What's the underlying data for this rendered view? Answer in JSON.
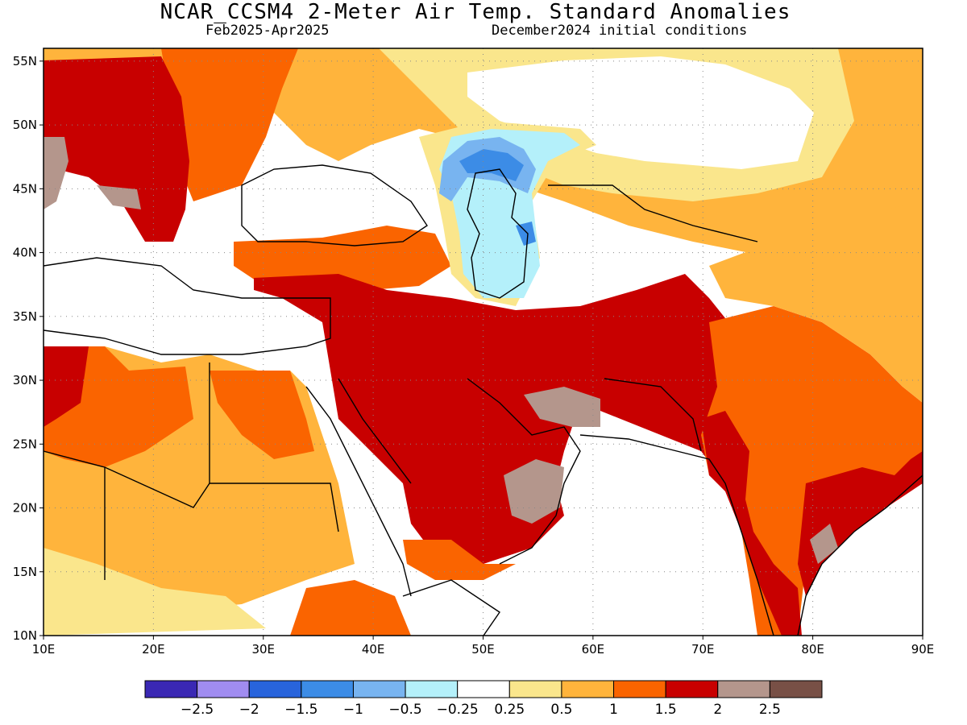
{
  "header": {
    "title": "NCAR_CCSM4 2-Meter Air Temp. Standard Anomalies",
    "period": "Feb2025-Apr2025",
    "init": "December2024 initial conditions"
  },
  "map": {
    "lon_range": [
      10,
      90
    ],
    "lat_range": [
      10,
      56
    ],
    "lon_ticks": [
      "10E",
      "20E",
      "30E",
      "40E",
      "50E",
      "60E",
      "70E",
      "80E",
      "90E"
    ],
    "lat_ticks": [
      "55N",
      "50N",
      "45N",
      "40N",
      "35N",
      "30N",
      "25N",
      "20N",
      "15N",
      "10N"
    ],
    "gridlines": "dotted"
  },
  "colorbar": {
    "colors": [
      "#3a28b4",
      "#a08cf0",
      "#2864dc",
      "#3c8ce6",
      "#78b4f0",
      "#b4f0fa",
      "#ffffff",
      "#fae68c",
      "#ffb43c",
      "#fa6400",
      "#c80000",
      "#b4968c",
      "#785046"
    ],
    "labels": [
      "-2.5",
      "-2",
      "-1.5",
      "-1",
      "-0.5",
      "-0.25",
      "0.25",
      "0.5",
      "1",
      "1.5",
      "2",
      "2.5"
    ]
  },
  "regions": {
    "europe_west": "#c80000",
    "balkans": "#c80000",
    "alps_brown": "#b4968c",
    "ukraine": "#fa6400",
    "russia_west": "#ffb43c",
    "central_asia": "#fae68c",
    "caspian_cool": "#3c8ce6",
    "turkey": "#fa6400",
    "arabia": "#c80000",
    "iran": "#c80000",
    "india": "#fa6400",
    "north_africa": "#ffb43c",
    "tibet": "#ffb43c",
    "horn": "#fa6400"
  }
}
